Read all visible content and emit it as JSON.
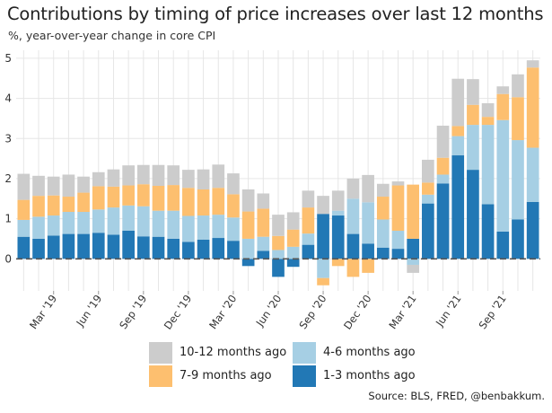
{
  "title": "Contributions by timing of price increases over last 12 months",
  "subtitle": "%, year-over-year change in core CPI",
  "source": "Source: BLS, FRED, @benbakkum.",
  "colors": {
    "m1_3": "#2278b5",
    "m4_6": "#a6cfe4",
    "m7_9": "#fdbf6f",
    "m10_12": "#cccccc",
    "zero_line": "#555555",
    "grid": "#e6e6e6"
  },
  "legend": [
    {
      "key": "m10_12",
      "label": "10-12 months ago"
    },
    {
      "key": "m4_6",
      "label": "4-6 months ago"
    },
    {
      "key": "m7_9",
      "label": "7-9 months ago"
    },
    {
      "key": "m1_3",
      "label": "1-3 months ago"
    }
  ],
  "chart_data": {
    "type": "bar",
    "stacked": true,
    "categories": [
      "Jan '19",
      "Feb '19",
      "Mar '19",
      "Apr '19",
      "May '19",
      "Jun '19",
      "Jul '19",
      "Aug '19",
      "Sep '19",
      "Oct '19",
      "Nov '19",
      "Dec '19",
      "Jan '20",
      "Feb '20",
      "Mar '20",
      "Apr '20",
      "May '20",
      "Jun '20",
      "Jul '20",
      "Aug '20",
      "Sep '20",
      "Oct '20",
      "Nov '20",
      "Dec '20",
      "Jan '21",
      "Feb '21",
      "Mar '21",
      "Apr '21",
      "May '21",
      "Jun '21",
      "Jul '21",
      "Aug '21",
      "Sep '21",
      "Oct '21",
      "Nov '21"
    ],
    "x_tick_labels": [
      "Mar '19",
      "Jun '19",
      "Sep '19",
      "Dec '19",
      "Mar '20",
      "Jun '20",
      "Sep '20",
      "Dec '20",
      "Mar '21",
      "Jun '21",
      "Sep '21"
    ],
    "y_ticks": [
      0,
      1,
      2,
      3,
      4,
      5
    ],
    "ylim": [
      -0.8,
      5.2
    ],
    "grid": true,
    "legend_position": "bottom",
    "series": [
      {
        "name": "1-3 months ago",
        "key": "m1_3",
        "values": [
          0.55,
          0.5,
          0.58,
          0.62,
          0.62,
          0.65,
          0.6,
          0.7,
          0.56,
          0.55,
          0.5,
          0.42,
          0.48,
          0.52,
          0.45,
          -0.18,
          0.2,
          -0.45,
          -0.2,
          0.35,
          1.12,
          1.08,
          0.62,
          0.38,
          0.28,
          0.25,
          0.5,
          1.38,
          1.88,
          2.58,
          2.22,
          1.36,
          0.68,
          0.98,
          1.42
        ]
      },
      {
        "name": "4-6 months ago",
        "key": "m4_6",
        "values": [
          0.42,
          0.55,
          0.5,
          0.55,
          0.55,
          0.58,
          0.68,
          0.63,
          0.75,
          0.65,
          0.7,
          0.65,
          0.6,
          0.58,
          0.58,
          0.5,
          0.35,
          0.22,
          0.3,
          0.28,
          -0.48,
          0.12,
          0.88,
          1.03,
          0.7,
          0.45,
          -0.15,
          0.22,
          0.22,
          0.48,
          1.12,
          1.98,
          2.78,
          1.98,
          1.35
        ]
      },
      {
        "name": "7-9 months ago",
        "key": "m7_9",
        "values": [
          0.5,
          0.52,
          0.5,
          0.38,
          0.48,
          0.58,
          0.52,
          0.5,
          0.55,
          0.62,
          0.64,
          0.7,
          0.65,
          0.67,
          0.58,
          0.68,
          0.7,
          0.35,
          0.43,
          0.65,
          -0.18,
          -0.18,
          -0.45,
          -0.35,
          0.57,
          1.13,
          1.35,
          0.3,
          0.42,
          0.25,
          0.5,
          0.2,
          0.65,
          1.07,
          2.0
        ]
      },
      {
        "name": "10-12 months ago",
        "key": "m10_12",
        "values": [
          0.65,
          0.5,
          0.47,
          0.55,
          0.4,
          0.35,
          0.43,
          0.5,
          0.48,
          0.52,
          0.49,
          0.45,
          0.5,
          0.58,
          0.52,
          0.55,
          0.38,
          0.53,
          0.43,
          0.42,
          0.45,
          0.5,
          0.5,
          0.68,
          0.32,
          0.1,
          -0.2,
          0.57,
          0.8,
          1.18,
          0.64,
          0.34,
          0.19,
          0.57,
          0.18
        ]
      }
    ]
  }
}
